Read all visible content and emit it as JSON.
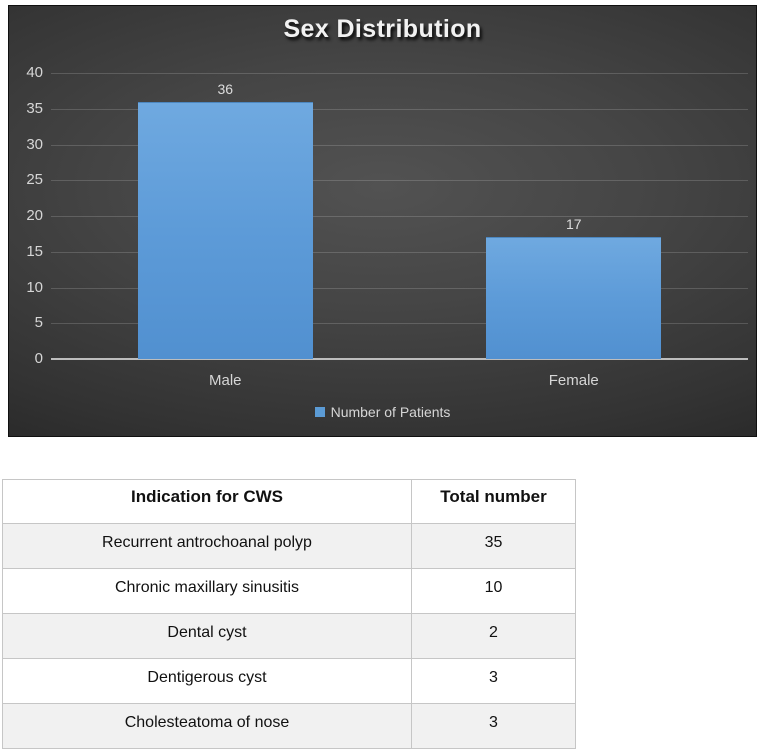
{
  "colors": {
    "bar": "#5b9bd5",
    "chart_background_dark": "#1b1b1b",
    "chart_background_light": "#525252",
    "gridline": "rgba(255,255,255,0.16)",
    "axis_text": "#d6d6d6",
    "table_stripe": "#f1f1f1",
    "table_border": "#c6c6c6"
  },
  "chart_data": {
    "type": "bar",
    "title": "Sex Distribution",
    "categories": [
      "Male",
      "Female"
    ],
    "values": [
      36,
      17
    ],
    "data_labels": [
      "36",
      "17"
    ],
    "series_name": "Number of Patients",
    "xlabel": "",
    "ylabel": "",
    "ylim": [
      0,
      40
    ],
    "ytick_step": 5,
    "yticks": [
      0,
      5,
      10,
      15,
      20,
      25,
      30,
      35,
      40
    ],
    "grid": true,
    "legend_position": "bottom"
  },
  "table": {
    "headers": [
      "Indication for CWS",
      "Total number"
    ],
    "rows": [
      {
        "indication": "Recurrent antrochoanal polyp",
        "total": "35"
      },
      {
        "indication": "Chronic maxillary sinusitis",
        "total": "10"
      },
      {
        "indication": "Dental cyst",
        "total": "2"
      },
      {
        "indication": "Dentigerous cyst",
        "total": "3"
      },
      {
        "indication": "Cholesteatoma of nose",
        "total": "3"
      }
    ]
  }
}
